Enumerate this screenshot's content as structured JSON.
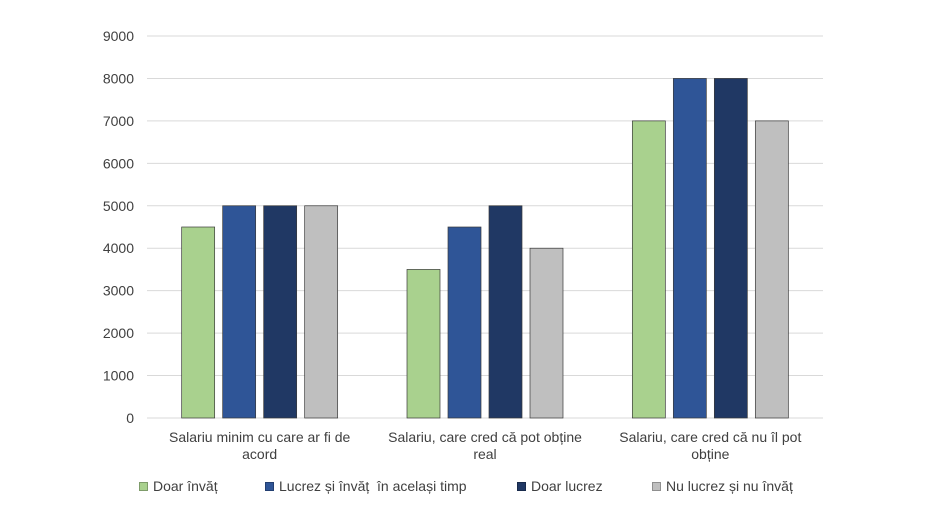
{
  "chart_data": {
    "type": "bar",
    "categories": [
      [
        "Salariu minim cu care ar fi de",
        "acord"
      ],
      [
        "Salariu, care cred că pot obține",
        "real"
      ],
      [
        "Salariu, care cred că nu îl pot",
        "obține"
      ]
    ],
    "series": [
      {
        "name": "Doar învăț",
        "color": "#a9d18e",
        "values": [
          4500,
          3500,
          7000
        ]
      },
      {
        "name": "Lucrez și învăț  în același timp",
        "color": "#2f5597",
        "values": [
          5000,
          4500,
          8000
        ]
      },
      {
        "name": "Doar lucrez",
        "color": "#203864",
        "values": [
          5000,
          5000,
          8000
        ]
      },
      {
        "name": "Nu lucrez și nu învăț",
        "color": "#bfbfbf",
        "values": [
          5000,
          4000,
          7000
        ]
      }
    ],
    "y_ticks": [
      "0",
      "1000",
      "2000",
      "3000",
      "4000",
      "5000",
      "6000",
      "7000",
      "8000",
      "9000"
    ],
    "ylim": [
      0,
      9000
    ],
    "grid": true,
    "legend_position": "bottom",
    "title": "",
    "xlabel": "",
    "ylabel": ""
  }
}
